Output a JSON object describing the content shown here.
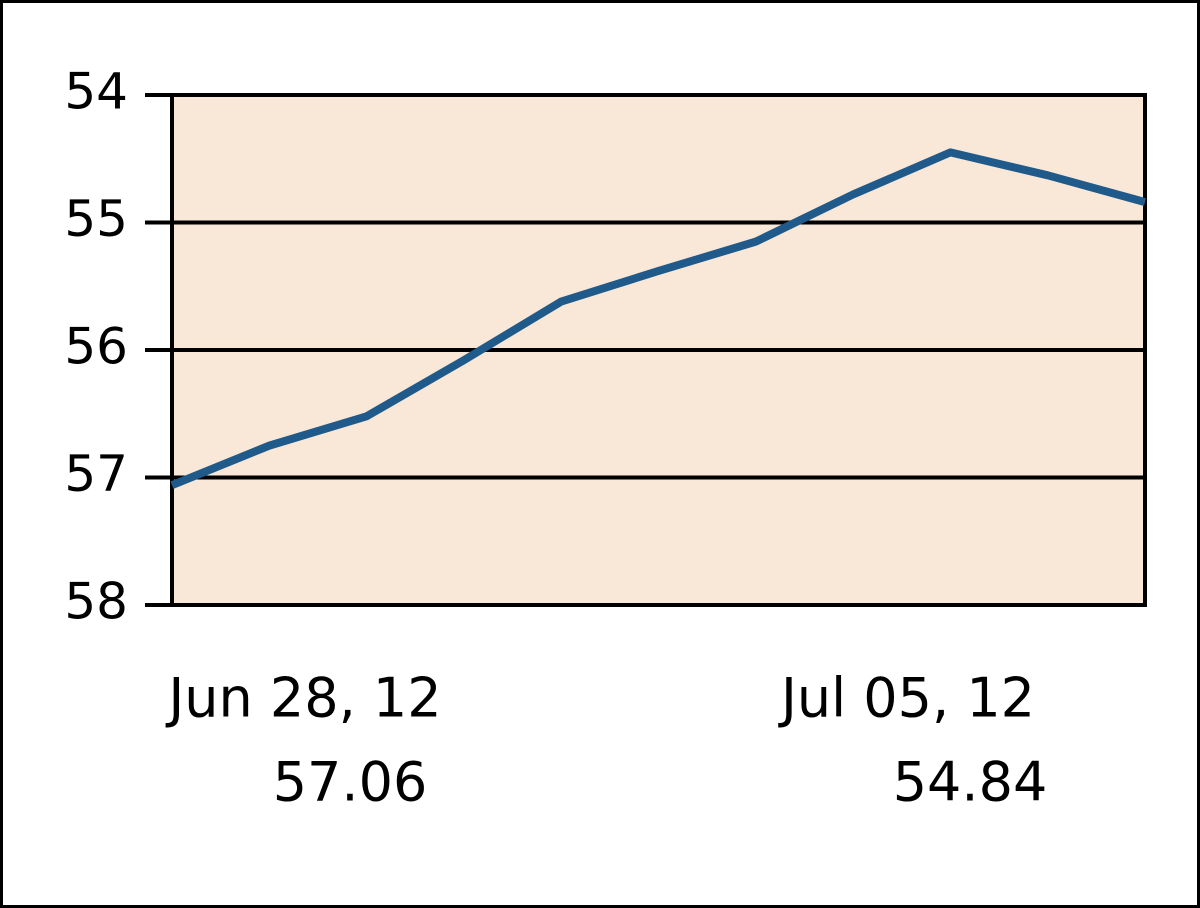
{
  "chart_data": {
    "type": "line",
    "categories": [
      null,
      null,
      null,
      null,
      null,
      null,
      null,
      null,
      null,
      null,
      null
    ],
    "series": [
      {
        "color": "#1f5a8a",
        "values": [
          57.06,
          56.75,
          56.52,
          56.08,
          55.62,
          55.38,
          55.15,
          54.78,
          54.45,
          54.63,
          54.84
        ]
      }
    ],
    "ylim": [
      58,
      54
    ],
    "yticks": [
      54,
      55,
      56,
      57,
      58
    ],
    "grid": true,
    "plot_background": "#f9e7d8",
    "annotations": [
      {
        "date": "Jun 28, 12",
        "value": 57.06
      },
      {
        "date": "Jul 05, 12",
        "value": 54.84
      }
    ]
  }
}
